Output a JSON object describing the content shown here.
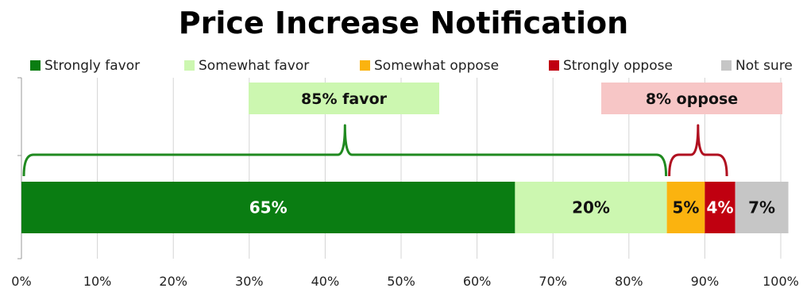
{
  "chart_data": {
    "type": "bar",
    "orientation": "horizontal",
    "stacked": true,
    "title": "Price Increase Notification",
    "xlabel": "",
    "ylabel": "",
    "xlim": [
      0,
      100
    ],
    "x_ticks": [
      "0%",
      "10%",
      "20%",
      "30%",
      "40%",
      "50%",
      "60%",
      "70%",
      "80%",
      "90%",
      "100%"
    ],
    "grid": true,
    "legend_position": "top",
    "series": [
      {
        "name": "Strongly favor",
        "value": 65,
        "label": "65%",
        "color": "#0a7d12",
        "label_color": "#ffffff"
      },
      {
        "name": "Somewhat favor",
        "value": 20,
        "label": "20%",
        "color": "#ccf7b0",
        "label_color": "#111111"
      },
      {
        "name": "Somewhat oppose",
        "value": 5,
        "label": "5%",
        "color": "#fbb30f",
        "label_color": "#111111"
      },
      {
        "name": "Strongly oppose",
        "value": 4,
        "label": "4%",
        "color": "#c00010",
        "label_color": "#ffffff"
      },
      {
        "name": "Not sure",
        "value": 7,
        "label": "7%",
        "color": "#c6c6c6",
        "label_color": "#111111"
      }
    ],
    "annotations": [
      {
        "text": "85% favor",
        "from": 0,
        "to": 85,
        "box_color": "#ccf7b0",
        "bracket_color": "#208a20"
      },
      {
        "text": "8% oppose",
        "from": 85,
        "to": 93,
        "box_color": "#f7c6c6",
        "bracket_color": "#b01020"
      }
    ]
  }
}
